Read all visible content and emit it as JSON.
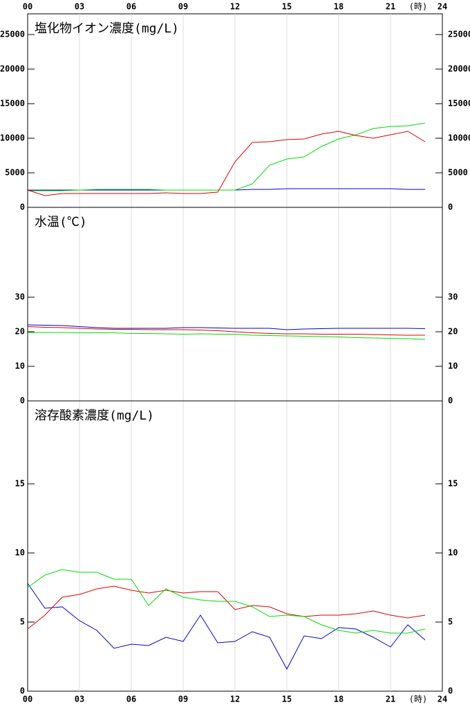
{
  "x_axis": {
    "xlim": [
      0,
      24
    ],
    "unit": "(時)",
    "xticks": [
      {
        "value": 0,
        "label": "00"
      },
      {
        "value": 3,
        "label": "03"
      },
      {
        "value": 6,
        "label": "06"
      },
      {
        "value": 9,
        "label": "09"
      },
      12,
      15,
      18,
      21,
      24
    ]
  },
  "chart_data": [
    {
      "type": "line",
      "title": "塩化物イオン濃度(mg/L)",
      "x": [
        0,
        1,
        2,
        3,
        4,
        5,
        6,
        7,
        8,
        9,
        10,
        11,
        12,
        13,
        14,
        15,
        16,
        17,
        18,
        19,
        20,
        21,
        22,
        23
      ],
      "ylim": [
        0,
        28000
      ],
      "yticks": [
        0,
        5000,
        10000,
        15000,
        20000,
        25000
      ],
      "series": [
        {
          "color": "#0000cc",
          "values": [
            2500,
            2500,
            2500,
            2500,
            2500,
            2500,
            2500,
            2500,
            2500,
            2500,
            2500,
            2500,
            2500,
            2600,
            2600,
            2700,
            2700,
            2700,
            2700,
            2700,
            2700,
            2700,
            2600,
            2600
          ]
        },
        {
          "color": "#00dd00",
          "values": [
            2400,
            2400,
            2400,
            2500,
            2600,
            2600,
            2600,
            2600,
            2500,
            2500,
            2500,
            2500,
            2500,
            3400,
            6100,
            7000,
            7300,
            8800,
            9900,
            10500,
            11400,
            11700,
            11800,
            12200
          ]
        },
        {
          "color": "#dd0000",
          "values": [
            2500,
            1700,
            2000,
            2000,
            2000,
            2000,
            2000,
            2000,
            2100,
            2000,
            2000,
            2200,
            6600,
            9400,
            9500,
            9800,
            9900,
            10600,
            11000,
            10400,
            10000,
            10500,
            11000,
            9500
          ]
        }
      ]
    },
    {
      "type": "line",
      "title": "水温(℃)",
      "x": [
        0,
        1,
        2,
        3,
        4,
        5,
        6,
        7,
        8,
        9,
        10,
        11,
        12,
        13,
        14,
        15,
        16,
        17,
        18,
        19,
        20,
        21,
        22,
        23
      ],
      "ylim": [
        0,
        56
      ],
      "yticks": [
        0,
        10,
        20,
        30
      ],
      "series": [
        {
          "color": "#0000cc",
          "values": [
            22.0,
            21.9,
            21.8,
            21.5,
            21.2,
            21.0,
            21.0,
            21.0,
            21.0,
            21.2,
            21.2,
            21.1,
            21.0,
            21.0,
            21.0,
            20.6,
            20.8,
            20.9,
            21.0,
            21.0,
            21.0,
            21.0,
            21.0,
            20.9
          ]
        },
        {
          "color": "#dd0000",
          "values": [
            21.5,
            21.3,
            21.2,
            21.0,
            20.8,
            20.7,
            20.7,
            20.6,
            20.6,
            20.6,
            20.5,
            20.3,
            20.0,
            19.7,
            19.5,
            19.4,
            19.4,
            19.3,
            19.3,
            19.3,
            19.2,
            19.1,
            19.0,
            19.0
          ]
        },
        {
          "color": "#00dd00",
          "values": [
            19.8,
            19.8,
            19.8,
            19.7,
            19.7,
            19.7,
            19.5,
            19.5,
            19.4,
            19.3,
            19.4,
            19.3,
            19.3,
            19.0,
            18.9,
            18.8,
            18.7,
            18.6,
            18.5,
            18.3,
            18.2,
            18.1,
            18.0,
            17.8
          ]
        }
      ]
    },
    {
      "type": "line",
      "title": "溶存酸素濃度(mg/L)",
      "x": [
        0,
        1,
        2,
        3,
        4,
        5,
        6,
        7,
        8,
        9,
        10,
        11,
        12,
        13,
        14,
        15,
        16,
        17,
        18,
        19,
        20,
        21,
        22,
        23
      ],
      "ylim": [
        0,
        21
      ],
      "yticks": [
        0,
        5,
        10,
        15
      ],
      "series": [
        {
          "color": "#0000cc",
          "values": [
            7.8,
            6.0,
            6.1,
            5.1,
            4.4,
            3.1,
            3.4,
            3.3,
            3.9,
            3.6,
            5.5,
            3.5,
            3.6,
            4.3,
            3.9,
            1.6,
            4.0,
            3.8,
            4.6,
            4.5,
            3.9,
            3.2,
            4.8,
            3.7
          ]
        },
        {
          "color": "#dd0000",
          "values": [
            4.5,
            5.5,
            6.8,
            7.0,
            7.4,
            7.6,
            7.3,
            7.1,
            7.3,
            7.1,
            7.2,
            7.2,
            5.9,
            6.2,
            6.1,
            5.6,
            5.4,
            5.5,
            5.5,
            5.6,
            5.8,
            5.5,
            5.3,
            5.5
          ]
        },
        {
          "color": "#00dd00",
          "values": [
            7.5,
            8.4,
            8.8,
            8.6,
            8.6,
            8.1,
            8.1,
            6.2,
            7.4,
            6.8,
            6.6,
            6.5,
            6.5,
            6.1,
            5.4,
            5.5,
            5.4,
            4.8,
            4.4,
            4.2,
            4.4,
            4.2,
            4.2,
            4.5
          ]
        }
      ]
    }
  ]
}
